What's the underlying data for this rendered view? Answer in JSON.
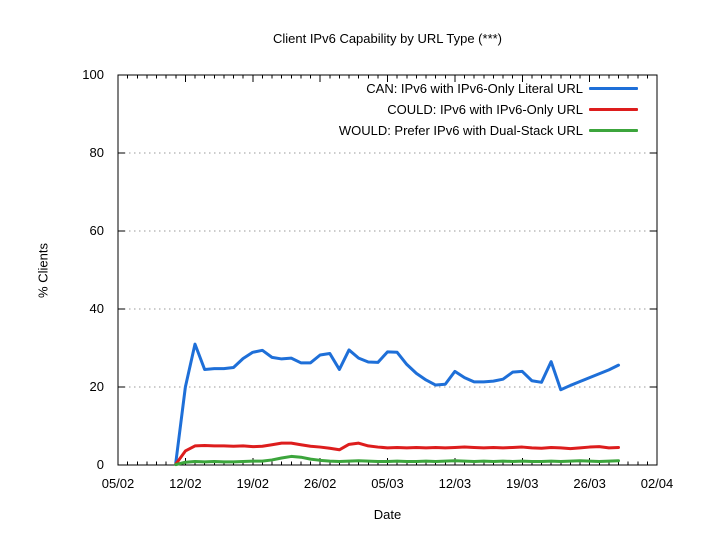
{
  "chart_data": {
    "type": "line",
    "title": "Client IPv6 Capability by URL Type (***)",
    "xlabel": "Date",
    "ylabel": "% Clients",
    "ylim": [
      0,
      100
    ],
    "y_ticks": [
      0,
      20,
      40,
      60,
      80,
      100
    ],
    "x_ticks": [
      "05/02",
      "12/02",
      "19/02",
      "26/02",
      "05/03",
      "12/03",
      "19/03",
      "26/03",
      "02/04"
    ],
    "grid": "horizontal-dashed",
    "grid_color": "#999999",
    "border_color": "#000000",
    "legend_position": "top-right-inside",
    "dates": [
      "11/02",
      "12/02",
      "13/02",
      "14/02",
      "15/02",
      "16/02",
      "17/02",
      "18/02",
      "19/02",
      "20/02",
      "21/02",
      "22/02",
      "23/02",
      "24/02",
      "25/02",
      "26/02",
      "27/02",
      "28/02",
      "01/03",
      "02/03",
      "03/03",
      "04/03",
      "05/03",
      "06/03",
      "07/03",
      "08/03",
      "09/03",
      "10/03",
      "11/03",
      "12/03",
      "13/03",
      "14/03",
      "15/03",
      "16/03",
      "17/03",
      "18/03",
      "19/03",
      "20/03",
      "21/03",
      "22/03",
      "23/03",
      "24/03",
      "25/03",
      "26/03",
      "27/03",
      "28/03",
      "29/03"
    ],
    "series": [
      {
        "name": "CAN: IPv6 with IPv6-Only Literal URL",
        "color": "#1e6fd8",
        "values": [
          0.5,
          20,
          31,
          24.5,
          24.7,
          24.7,
          25,
          27.3,
          28.9,
          29.4,
          27.6,
          27.2,
          27.4,
          26.2,
          26.2,
          28.2,
          28.6,
          24.5,
          29.5,
          27.4,
          26.4,
          26.3,
          29,
          28.9,
          25.8,
          23.5,
          21.8,
          20.5,
          20.7,
          24,
          22.4,
          21.3,
          21.3,
          21.5,
          22,
          23.8,
          24,
          21.6,
          21.2,
          26.5,
          19.3,
          20.4,
          21.4,
          22.4,
          23.4,
          24.4,
          25.6
        ]
      },
      {
        "name": "COULD: IPv6 with IPv6-Only URL",
        "color": "#dd1d1d",
        "values": [
          0.2,
          3.6,
          4.9,
          5,
          4.9,
          4.9,
          4.8,
          4.9,
          4.7,
          4.8,
          5.2,
          5.6,
          5.6,
          5.2,
          4.8,
          4.6,
          4.3,
          3.9,
          5.3,
          5.6,
          4.9,
          4.6,
          4.4,
          4.5,
          4.4,
          4.5,
          4.4,
          4.5,
          4.4,
          4.5,
          4.6,
          4.5,
          4.4,
          4.5,
          4.4,
          4.5,
          4.6,
          4.4,
          4.3,
          4.5,
          4.4,
          4.2,
          4.4,
          4.6,
          4.7,
          4.4,
          4.5
        ]
      },
      {
        "name": "WOULD: Prefer IPv6 with Dual-Stack URL",
        "color": "#3ca53c",
        "values": [
          0.1,
          0.7,
          0.9,
          0.8,
          0.9,
          0.8,
          0.8,
          0.9,
          1,
          1,
          1.3,
          1.8,
          2.2,
          2,
          1.5,
          1.2,
          1,
          0.9,
          1,
          1.1,
          1,
          0.9,
          0.9,
          1,
          0.9,
          0.9,
          1,
          0.9,
          1,
          1.1,
          1,
          0.9,
          1,
          0.9,
          1,
          0.9,
          1,
          0.9,
          0.9,
          1,
          0.9,
          1,
          1.1,
          1,
          0.9,
          1,
          1.1
        ]
      }
    ]
  }
}
